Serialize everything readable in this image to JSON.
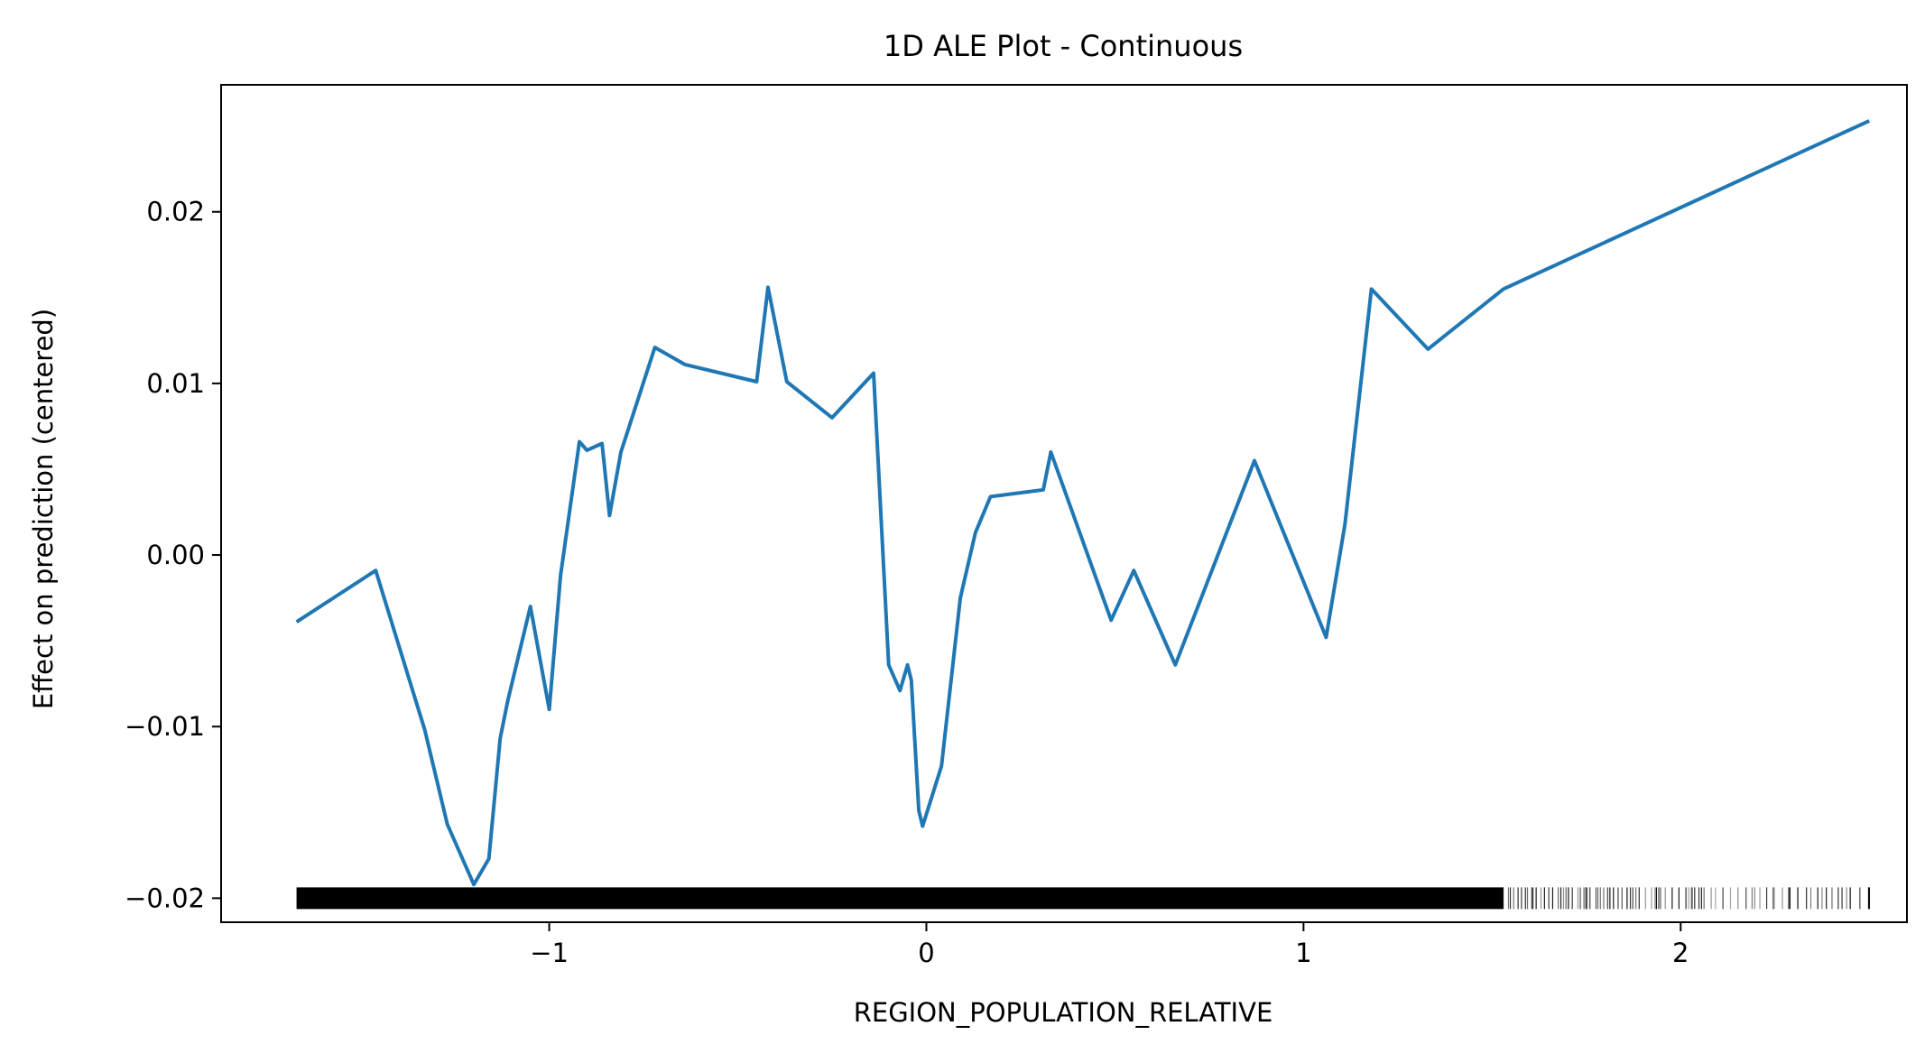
{
  "chart_data": {
    "type": "line",
    "title": "1D ALE Plot - Continuous",
    "xlabel": "REGION_POPULATION_RELATIVE",
    "ylabel": "Effect on prediction (centered)",
    "xlim": [
      -1.87,
      2.6
    ],
    "ylim": [
      -0.0214,
      0.0274
    ],
    "x_ticks": [
      {
        "value": -1,
        "label": "−1"
      },
      {
        "value": 0,
        "label": "0"
      },
      {
        "value": 1,
        "label": "1"
      },
      {
        "value": 2,
        "label": "2"
      }
    ],
    "y_ticks": [
      {
        "value": -0.02,
        "label": "−0.02"
      },
      {
        "value": -0.01,
        "label": "−0.01"
      },
      {
        "value": 0.0,
        "label": "0.00"
      },
      {
        "value": 0.01,
        "label": "0.01"
      },
      {
        "value": 0.02,
        "label": "0.02"
      }
    ],
    "grid": false,
    "line_color": "#1f77b4",
    "rug_color": "#000000",
    "series": [
      {
        "x": [
          -1.67,
          -1.46,
          -1.33,
          -1.27,
          -1.2,
          -1.16,
          -1.13,
          -1.11,
          -1.05,
          -1.0,
          -0.97,
          -0.92,
          -0.9,
          -0.86,
          -0.84,
          -0.81,
          -0.72,
          -0.64,
          -0.45,
          -0.42,
          -0.37,
          -0.25,
          -0.14,
          -0.1,
          -0.07,
          -0.05,
          -0.04,
          -0.02,
          -0.01,
          0.04,
          0.09,
          0.13,
          0.17,
          0.31,
          0.33,
          0.49,
          0.55,
          0.66,
          0.87,
          1.06,
          1.11,
          1.18,
          1.33,
          1.53,
          2.5
        ],
        "y": [
          -0.0039,
          -0.0009,
          -0.0102,
          -0.0157,
          -0.0192,
          -0.0177,
          -0.0107,
          -0.0085,
          -0.003,
          -0.009,
          -0.0012,
          0.0066,
          0.0061,
          0.0065,
          0.0023,
          0.006,
          0.0121,
          0.0111,
          0.0101,
          0.0156,
          0.0101,
          0.008,
          0.0106,
          -0.0064,
          -0.0079,
          -0.0064,
          -0.0073,
          -0.0149,
          -0.0158,
          -0.0123,
          -0.0025,
          0.0013,
          0.0034,
          0.0038,
          0.006,
          -0.0038,
          -0.0009,
          -0.0064,
          0.0055,
          -0.0048,
          0.0018,
          0.0155,
          0.012,
          0.0155,
          0.0253
        ]
      }
    ],
    "rug": {
      "y": -0.02,
      "x_min": -1.67,
      "x_max": 2.5,
      "dense_until": 1.53
    }
  }
}
